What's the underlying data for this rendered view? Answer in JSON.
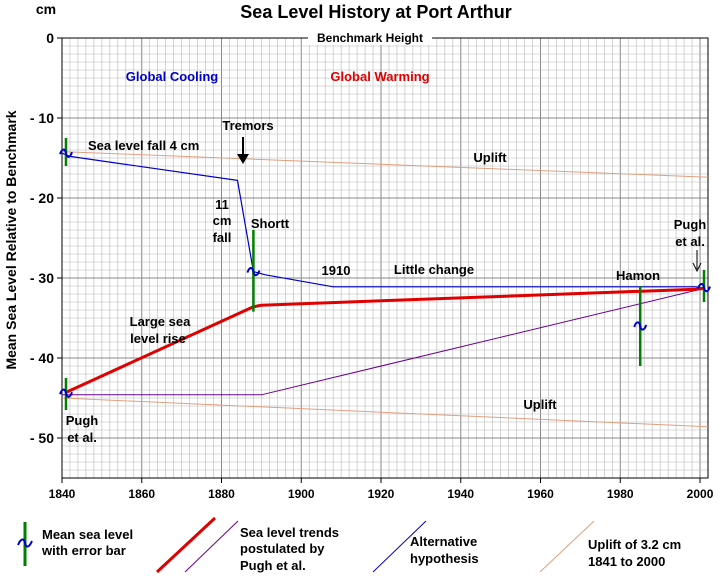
{
  "chart_data": {
    "type": "line",
    "title": "Sea Level History at Port Arthur",
    "ylabel": "Mean Sea Level Relative to Benchmark",
    "y_unit_label": "cm",
    "benchmark_label": "Benchmark Height",
    "xlim": [
      1840,
      2002
    ],
    "ylim": [
      0,
      -55
    ],
    "x_ticks": [
      1840,
      1860,
      1880,
      1900,
      1920,
      1940,
      1960,
      1980,
      2000
    ],
    "y_ticks": [
      0,
      -10,
      -20,
      -30,
      -40,
      -50
    ],
    "y_tick_labels": [
      "0",
      "- 10",
      "- 20",
      "- 30",
      "- 40",
      "- 50"
    ],
    "grid": true,
    "colors": {
      "grid": "#b8b8b8",
      "trend": "#e00000",
      "alternative": "#0000c8",
      "uplift": "#e0a080",
      "alt_hypothesis": "#6a0090",
      "error_bar": "#008000",
      "mean_symbol": "#0000c8",
      "cooling_text": "#0000c8",
      "warming_text": "#e00000"
    },
    "series": [
      {
        "name": "Sea level trends postulated by Pugh et al.",
        "key": "trend",
        "x": [
          1841,
          1888,
          1890,
          1999,
          2001
        ],
        "y": [
          -44.3,
          -33.6,
          -33.4,
          -31.4,
          -31.3
        ]
      },
      {
        "name": "Alternative hypothesis",
        "key": "alternative",
        "x": [
          1840,
          1842,
          1884,
          1888,
          1891,
          1908,
          1999,
          2001
        ],
        "y": [
          -14.4,
          -14.8,
          -17.8,
          -29.2,
          -29.6,
          -31.1,
          -31.1,
          -31.3
        ]
      },
      {
        "name": "",
        "key": "alt_hypothesis",
        "x": [
          1840,
          1890,
          2001
        ],
        "y": [
          -44.6,
          -44.6,
          -31.3
        ]
      },
      {
        "name": "Uplift of 3.2 cm 1841 to 2000",
        "key": "uplift",
        "x": [
          1840,
          2002
        ],
        "y": [
          -14.2,
          -17.4
        ]
      },
      {
        "name": "",
        "key": "uplift",
        "x": [
          1840,
          2002
        ],
        "y": [
          -45,
          -48.6
        ]
      }
    ],
    "mean_sea_level_points": [
      {
        "x": 1841,
        "y": -14.4,
        "err_low": -12.5,
        "err_high": -16
      },
      {
        "x": 1841,
        "y": -44.4,
        "err_low": -42.5,
        "err_high": -46.5
      },
      {
        "x": 1888,
        "y": -29.2,
        "err_low": -24,
        "err_high": -34.2
      },
      {
        "x": 1985,
        "y": -36,
        "err_low": -31,
        "err_high": -41
      },
      {
        "x": 2001,
        "y": -31.2,
        "err_low": -29,
        "err_high": -33
      }
    ],
    "annotations": {
      "global_cooling": "Global Cooling",
      "global_warming": "Global Warming",
      "tremors": "Tremors",
      "sea_level_fall": "Sea level fall 4 cm",
      "uplift_upper": "Uplift",
      "uplift_lower": "Uplift",
      "fall_11": "11",
      "fall_cm": "cm",
      "fall_word": "fall",
      "shortt": "Shortt",
      "year_1910": "1910",
      "little_change": "Little change",
      "hamon": "Hamon",
      "pugh_right_1": "Pugh",
      "pugh_right_2": "et al.",
      "large_rise_1": "Large sea",
      "large_rise_2": "level rise",
      "pugh_left_1": "Pugh",
      "pugh_left_2": "et al."
    },
    "legend": [
      {
        "symbol": "mean",
        "lines": [
          "Mean sea level",
          "with error bar"
        ]
      },
      {
        "symbol": "trend",
        "lines": [
          "Sea level trends",
          "postulated by",
          "Pugh et al."
        ]
      },
      {
        "symbol": "alternative",
        "lines": [
          "Alternative",
          "hypothesis"
        ]
      },
      {
        "symbol": "uplift",
        "lines": [
          "Uplift of 3.2 cm",
          "1841 to 2000"
        ]
      }
    ],
    "legend_placement": "bottom"
  }
}
